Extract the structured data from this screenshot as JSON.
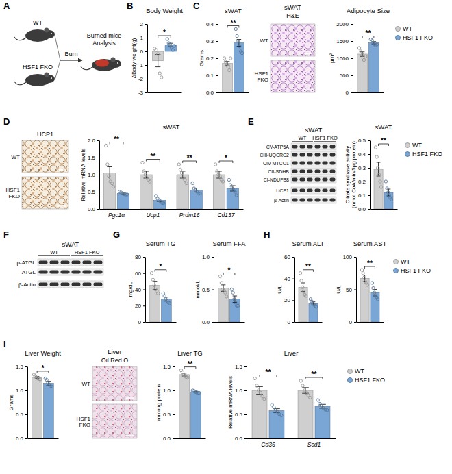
{
  "figure": {
    "panel_letters": [
      "A",
      "B",
      "C",
      "D",
      "E",
      "F",
      "G",
      "H",
      "I"
    ],
    "scheme": {
      "groups": [
        "WT",
        "HSF1 FKO"
      ],
      "step": "Burn",
      "result": "Burned mice Analysis"
    },
    "images": [
      {
        "title": "sWAT",
        "stain": "H&E",
        "rows": [
          "WT",
          "HSF1 FKO"
        ]
      },
      {
        "stain": "UCP1",
        "rows": [
          "WT",
          "HSF1 FKO"
        ]
      },
      {
        "title": "Liver",
        "stain": "Oil Red O",
        "rows": [
          "WT",
          "HSF1 FKO"
        ]
      }
    ],
    "blots": [
      {
        "title": "sWAT",
        "groups": [
          "WT",
          "HSF1 FKO"
        ],
        "rows": [
          "CV-ATP5A",
          "CIII-UQCRC2",
          "CIV-MTCO1",
          "CII-SDHB",
          "CI-NDUFB8",
          "UCP1",
          "β-Actin"
        ]
      },
      {
        "title": "sWAT",
        "groups": [
          "WT",
          "HSF1 FKO"
        ],
        "rows": [
          "p-ATGL",
          "ATGL",
          "β-Actin"
        ]
      }
    ]
  },
  "chart_data": [
    {
      "type": "bar",
      "title": "Body Weight",
      "y_label": "ΔBody weight(g)",
      "categories": [
        null
      ],
      "ylim": [
        -3,
        2
      ],
      "yticks": [
        -3,
        -2,
        -1,
        0,
        1,
        2
      ],
      "significance": [
        "*"
      ],
      "series": [
        {
          "name": "WT",
          "color": "#cfcfcf",
          "values": [
            -0.68
          ],
          "errors": [
            0.45
          ],
          "points": [
            [
              0.2,
              0.1,
              -0.2,
              -1.6,
              -1.9
            ]
          ]
        },
        {
          "name": "HSF1 FKO",
          "color": "#7aa6d6",
          "values": [
            0.47
          ],
          "errors": [
            0.12
          ],
          "points": [
            [
              0.9,
              0.6,
              0.5,
              0.3,
              0.1,
              0.4
            ]
          ]
        }
      ]
    },
    {
      "type": "bar",
      "title": "sWAT",
      "y_label": "Grams",
      "categories": [
        null
      ],
      "ylim": [
        0,
        0.4
      ],
      "yticks": [
        {
          "value": 0,
          "label": "0.0"
        },
        0.1,
        0.2,
        0.3,
        0.4
      ],
      "significance": [
        "**"
      ],
      "series": [
        {
          "name": "WT",
          "color": "#cfcfcf",
          "values": [
            0.17
          ],
          "errors": [
            0.011
          ],
          "points": [
            [
              0.2,
              0.18,
              0.16,
              0.15,
              0.13,
              0.2
            ]
          ]
        },
        {
          "name": "HSF1 FKO",
          "color": "#7aa6d6",
          "values": [
            0.29
          ],
          "errors": [
            0.02
          ],
          "points": [
            [
              0.37,
              0.33,
              0.3,
              0.27,
              0.24,
              0.23
            ]
          ]
        }
      ]
    },
    {
      "type": "bar",
      "title": "Adipocyte Size",
      "y_label": "μm²",
      "categories": [
        null
      ],
      "ylim": [
        0,
        2000
      ],
      "yticks": [
        0,
        500,
        1000,
        1500,
        2000
      ],
      "significance": [
        "**"
      ],
      "legend": "right",
      "series": [
        {
          "name": "WT",
          "color": "#cfcfcf",
          "values": [
            1120
          ],
          "errors": [
            65
          ],
          "points": [
            [
              1300,
              1200,
              1100,
              950,
              1050
            ]
          ]
        },
        {
          "name": "HSF1 FKO",
          "color": "#7aa6d6",
          "values": [
            1450
          ],
          "errors": [
            35
          ],
          "points": [
            [
              1550,
              1520,
              1450,
              1400,
              1380,
              1400
            ]
          ]
        }
      ]
    },
    {
      "type": "bar",
      "title": "sWAT",
      "y_label": "Relative mRNA levels",
      "categories": [
        "Pgc1α",
        "Ucp1",
        "Prdm16",
        "Cd137"
      ],
      "ylim": [
        0,
        2
      ],
      "yticks": [
        {
          "value": 0,
          "label": "0.0"
        },
        0.5,
        {
          "value": 1,
          "label": "1.0"
        },
        1.5,
        {
          "value": 2,
          "label": "2.0"
        }
      ],
      "significance": [
        "**",
        "**",
        "**",
        "*"
      ],
      "series": [
        {
          "name": "WT",
          "color": "#cfcfcf",
          "values": [
            1.05,
            1.0,
            1.0,
            1.0
          ],
          "errors": [
            0.18,
            0.1,
            0.1,
            0.1
          ],
          "points": [
            [
              1.85,
              1.3,
              0.95,
              0.8,
              0.75,
              0.65
            ],
            [
              1.35,
              1.1,
              1.0,
              0.9,
              0.85,
              0.8
            ],
            [
              1.3,
              1.15,
              1.05,
              0.9,
              0.85,
              0.75
            ],
            [
              1.3,
              1.1,
              1.0,
              0.95,
              0.85,
              0.8
            ]
          ]
        },
        {
          "name": "HSF1 FKO",
          "color": "#7aa6d6",
          "values": [
            0.45,
            0.25,
            0.55,
            0.6
          ],
          "errors": [
            0.03,
            0.04,
            0.06,
            0.08
          ],
          "points": [
            [
              0.5,
              0.48,
              0.45,
              0.43,
              0.42,
              0.42
            ],
            [
              0.38,
              0.3,
              0.25,
              0.22,
              0.18,
              0.17
            ],
            [
              0.75,
              0.6,
              0.55,
              0.5,
              0.45,
              0.45
            ],
            [
              0.85,
              0.7,
              0.6,
              0.55,
              0.5,
              0.4
            ]
          ]
        }
      ]
    },
    {
      "type": "bar",
      "title": "sWAT",
      "y_label": "Citrate synthase activity (nmol CoA/min/5μg protein)",
      "categories": [
        null
      ],
      "ylim": [
        0,
        0.5
      ],
      "yticks": [
        {
          "value": 0,
          "label": "0.0"
        },
        0.1,
        0.2,
        0.3,
        0.4,
        0.5
      ],
      "significance": [
        "**"
      ],
      "legend": "right",
      "series": [
        {
          "name": "WT",
          "color": "#cfcfcf",
          "values": [
            0.29
          ],
          "errors": [
            0.05
          ],
          "points": [
            [
              0.45,
              0.38,
              0.3,
              0.25,
              0.2,
              0.16
            ]
          ]
        },
        {
          "name": "HSF1 FKO",
          "color": "#7aa6d6",
          "values": [
            0.12
          ],
          "errors": [
            0.025
          ],
          "points": [
            [
              0.2,
              0.15,
              0.12,
              0.1,
              0.08,
              0.07
            ]
          ]
        }
      ]
    },
    {
      "type": "bar",
      "title": "Serum TG",
      "y_label": "mg/dL",
      "categories": [
        null
      ],
      "ylim": [
        0,
        80
      ],
      "yticks": [
        0,
        20,
        40,
        60,
        80
      ],
      "significance": [
        "*"
      ],
      "series": [
        {
          "name": "WT",
          "color": "#cfcfcf",
          "values": [
            45
          ],
          "errors": [
            5
          ],
          "points": [
            [
              60,
              52,
              45,
              40,
              38,
              35
            ]
          ]
        },
        {
          "name": "HSF1 FKO",
          "color": "#7aa6d6",
          "values": [
            28
          ],
          "errors": [
            2.5
          ],
          "points": [
            [
              35,
              32,
              28,
              26,
              24,
              23
            ]
          ]
        }
      ]
    },
    {
      "type": "bar",
      "title": "Serum FFA",
      "y_label": "mmol/L",
      "categories": [
        null
      ],
      "ylim": [
        0,
        1
      ],
      "yticks": [
        {
          "value": 0,
          "label": "0.0"
        },
        0.5,
        {
          "value": 1,
          "label": "1.0"
        }
      ],
      "significance": [
        "*"
      ],
      "series": [
        {
          "name": "WT",
          "color": "#cfcfcf",
          "values": [
            0.52
          ],
          "errors": [
            0.05
          ],
          "points": [
            [
              0.7,
              0.6,
              0.5,
              0.48,
              0.45,
              0.39
            ]
          ]
        },
        {
          "name": "HSF1 FKO",
          "color": "#7aa6d6",
          "values": [
            0.35
          ],
          "errors": [
            0.05
          ],
          "points": [
            [
              0.5,
              0.45,
              0.35,
              0.3,
              0.25,
              0.25
            ]
          ]
        }
      ]
    },
    {
      "type": "bar",
      "title": "Serum ALT",
      "y_label": "U/L",
      "categories": [
        null
      ],
      "ylim": [
        0,
        60
      ],
      "yticks": [
        0,
        20,
        40,
        60
      ],
      "significance": [
        "**"
      ],
      "series": [
        {
          "name": "WT",
          "color": "#cfcfcf",
          "values": [
            32
          ],
          "errors": [
            4
          ],
          "points": [
            [
              45,
              38,
              32,
              28,
              25,
              24
            ]
          ]
        },
        {
          "name": "HSF1 FKO",
          "color": "#7aa6d6",
          "values": [
            17
          ],
          "errors": [
            1.5
          ],
          "points": [
            [
              21,
              19,
              17,
              16,
              15,
              14
            ]
          ]
        }
      ]
    },
    {
      "type": "bar",
      "title": "Serum AST",
      "y_label": "U/L",
      "categories": [
        null
      ],
      "ylim": [
        0,
        100
      ],
      "yticks": [
        0,
        50,
        100
      ],
      "significance": [
        "**"
      ],
      "legend": "right",
      "series": [
        {
          "name": "WT",
          "color": "#cfcfcf",
          "values": [
            67
          ],
          "errors": [
            5
          ],
          "points": [
            [
              80,
              75,
              68,
              62,
              60,
              57
            ]
          ]
        },
        {
          "name": "HSF1 FKO",
          "color": "#7aa6d6",
          "values": [
            45
          ],
          "errors": [
            5
          ],
          "points": [
            [
              60,
              52,
              45,
              40,
              38,
              35
            ]
          ]
        }
      ]
    },
    {
      "type": "bar",
      "title": "Liver Weight",
      "y_label": "Grams",
      "categories": [
        null
      ],
      "ylim": [
        0,
        1.5
      ],
      "yticks": [
        {
          "value": 0,
          "label": "0.0"
        },
        0.5,
        {
          "value": 1,
          "label": "1.0"
        },
        1.5
      ],
      "significance": [
        "*"
      ],
      "series": [
        {
          "name": "WT",
          "color": "#cfcfcf",
          "values": [
            1.27
          ],
          "errors": [
            0.02
          ],
          "points": [
            [
              1.33,
              1.3,
              1.27,
              1.25,
              1.24,
              1.23
            ]
          ]
        },
        {
          "name": "HSF1 FKO",
          "color": "#7aa6d6",
          "values": [
            1.15
          ],
          "errors": [
            0.04
          ],
          "points": [
            [
              1.25,
              1.22,
              1.15,
              1.12,
              1.08,
              1.08
            ]
          ]
        }
      ]
    },
    {
      "type": "bar",
      "title": "Liver TG",
      "y_label": "mmol/g protein",
      "categories": [
        null
      ],
      "ylim": [
        0,
        1.5
      ],
      "yticks": [
        {
          "value": 0,
          "label": "0.0"
        },
        0.5,
        {
          "value": 1,
          "label": "1.0"
        },
        1.5
      ],
      "significance": [
        "**"
      ],
      "series": [
        {
          "name": "WT",
          "color": "#cfcfcf",
          "values": [
            1.33
          ],
          "errors": [
            0.03
          ],
          "points": [
            [
              1.42,
              1.38,
              1.33,
              1.3,
              1.28,
              1.27
            ]
          ]
        },
        {
          "name": "HSF1 FKO",
          "color": "#7aa6d6",
          "values": [
            0.97
          ],
          "errors": [
            0.01
          ],
          "points": [
            [
              1.0,
              0.99,
              0.97,
              0.96,
              0.95,
              0.95
            ]
          ]
        }
      ]
    },
    {
      "type": "bar",
      "title": "Liver",
      "y_label": "Relative mRNA levels",
      "categories": [
        "Cd36",
        "Scd1"
      ],
      "ylim": [
        0,
        1.5
      ],
      "yticks": [
        {
          "value": 0,
          "label": "0.0"
        },
        0.5,
        {
          "value": 1,
          "label": "1.0"
        },
        1.5
      ],
      "significance": [
        "**",
        "**"
      ],
      "legend": "right",
      "series": [
        {
          "name": "WT",
          "color": "#cfcfcf",
          "values": [
            1.0,
            1.0
          ],
          "errors": [
            0.08,
            0.06
          ],
          "points": [
            [
              1.25,
              1.1,
              1.0,
              0.95,
              0.88,
              0.82
            ],
            [
              1.2,
              1.1,
              1.0,
              0.95,
              0.9,
              0.85
            ]
          ]
        },
        {
          "name": "HSF1 FKO",
          "color": "#7aa6d6",
          "values": [
            0.58,
            0.67
          ],
          "errors": [
            0.04,
            0.04
          ],
          "points": [
            [
              0.7,
              0.65,
              0.6,
              0.55,
              0.5,
              0.48
            ],
            [
              0.8,
              0.72,
              0.68,
              0.63,
              0.6,
              0.59
            ]
          ]
        }
      ]
    }
  ]
}
